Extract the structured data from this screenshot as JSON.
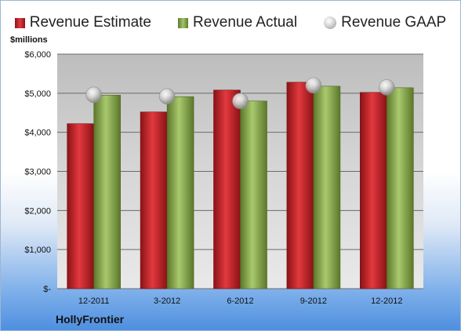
{
  "chart_data": {
    "type": "bar",
    "title": "",
    "xlabel": "",
    "ylabel": "",
    "unit_label": "$millions",
    "company_label": "HollyFrontier",
    "categories": [
      "12-2011",
      "3-2012",
      "6-2012",
      "9-2012",
      "12-2012"
    ],
    "series": [
      {
        "name": "Revenue Estimate",
        "type": "bar",
        "color": "#c8262b",
        "values": [
          4220,
          4520,
          5080,
          5280,
          5020
        ]
      },
      {
        "name": "Revenue Actual",
        "type": "bar",
        "color": "#8bad4f",
        "values": [
          4950,
          4910,
          4800,
          5180,
          5140
        ]
      },
      {
        "name": "Revenue GAAP",
        "type": "marker",
        "color": "#c0c0c0",
        "values": [
          4960,
          4920,
          4800,
          5200,
          5150
        ]
      }
    ],
    "ylim": [
      0,
      6000
    ],
    "yticks": [
      0,
      1000,
      2000,
      3000,
      4000,
      5000,
      6000
    ],
    "ytick_labels": [
      "$-",
      "$1,000",
      "$2,000",
      "$3,000",
      "$4,000",
      "$5,000",
      "$6,000"
    ],
    "grid": true,
    "legend_position": "top"
  }
}
